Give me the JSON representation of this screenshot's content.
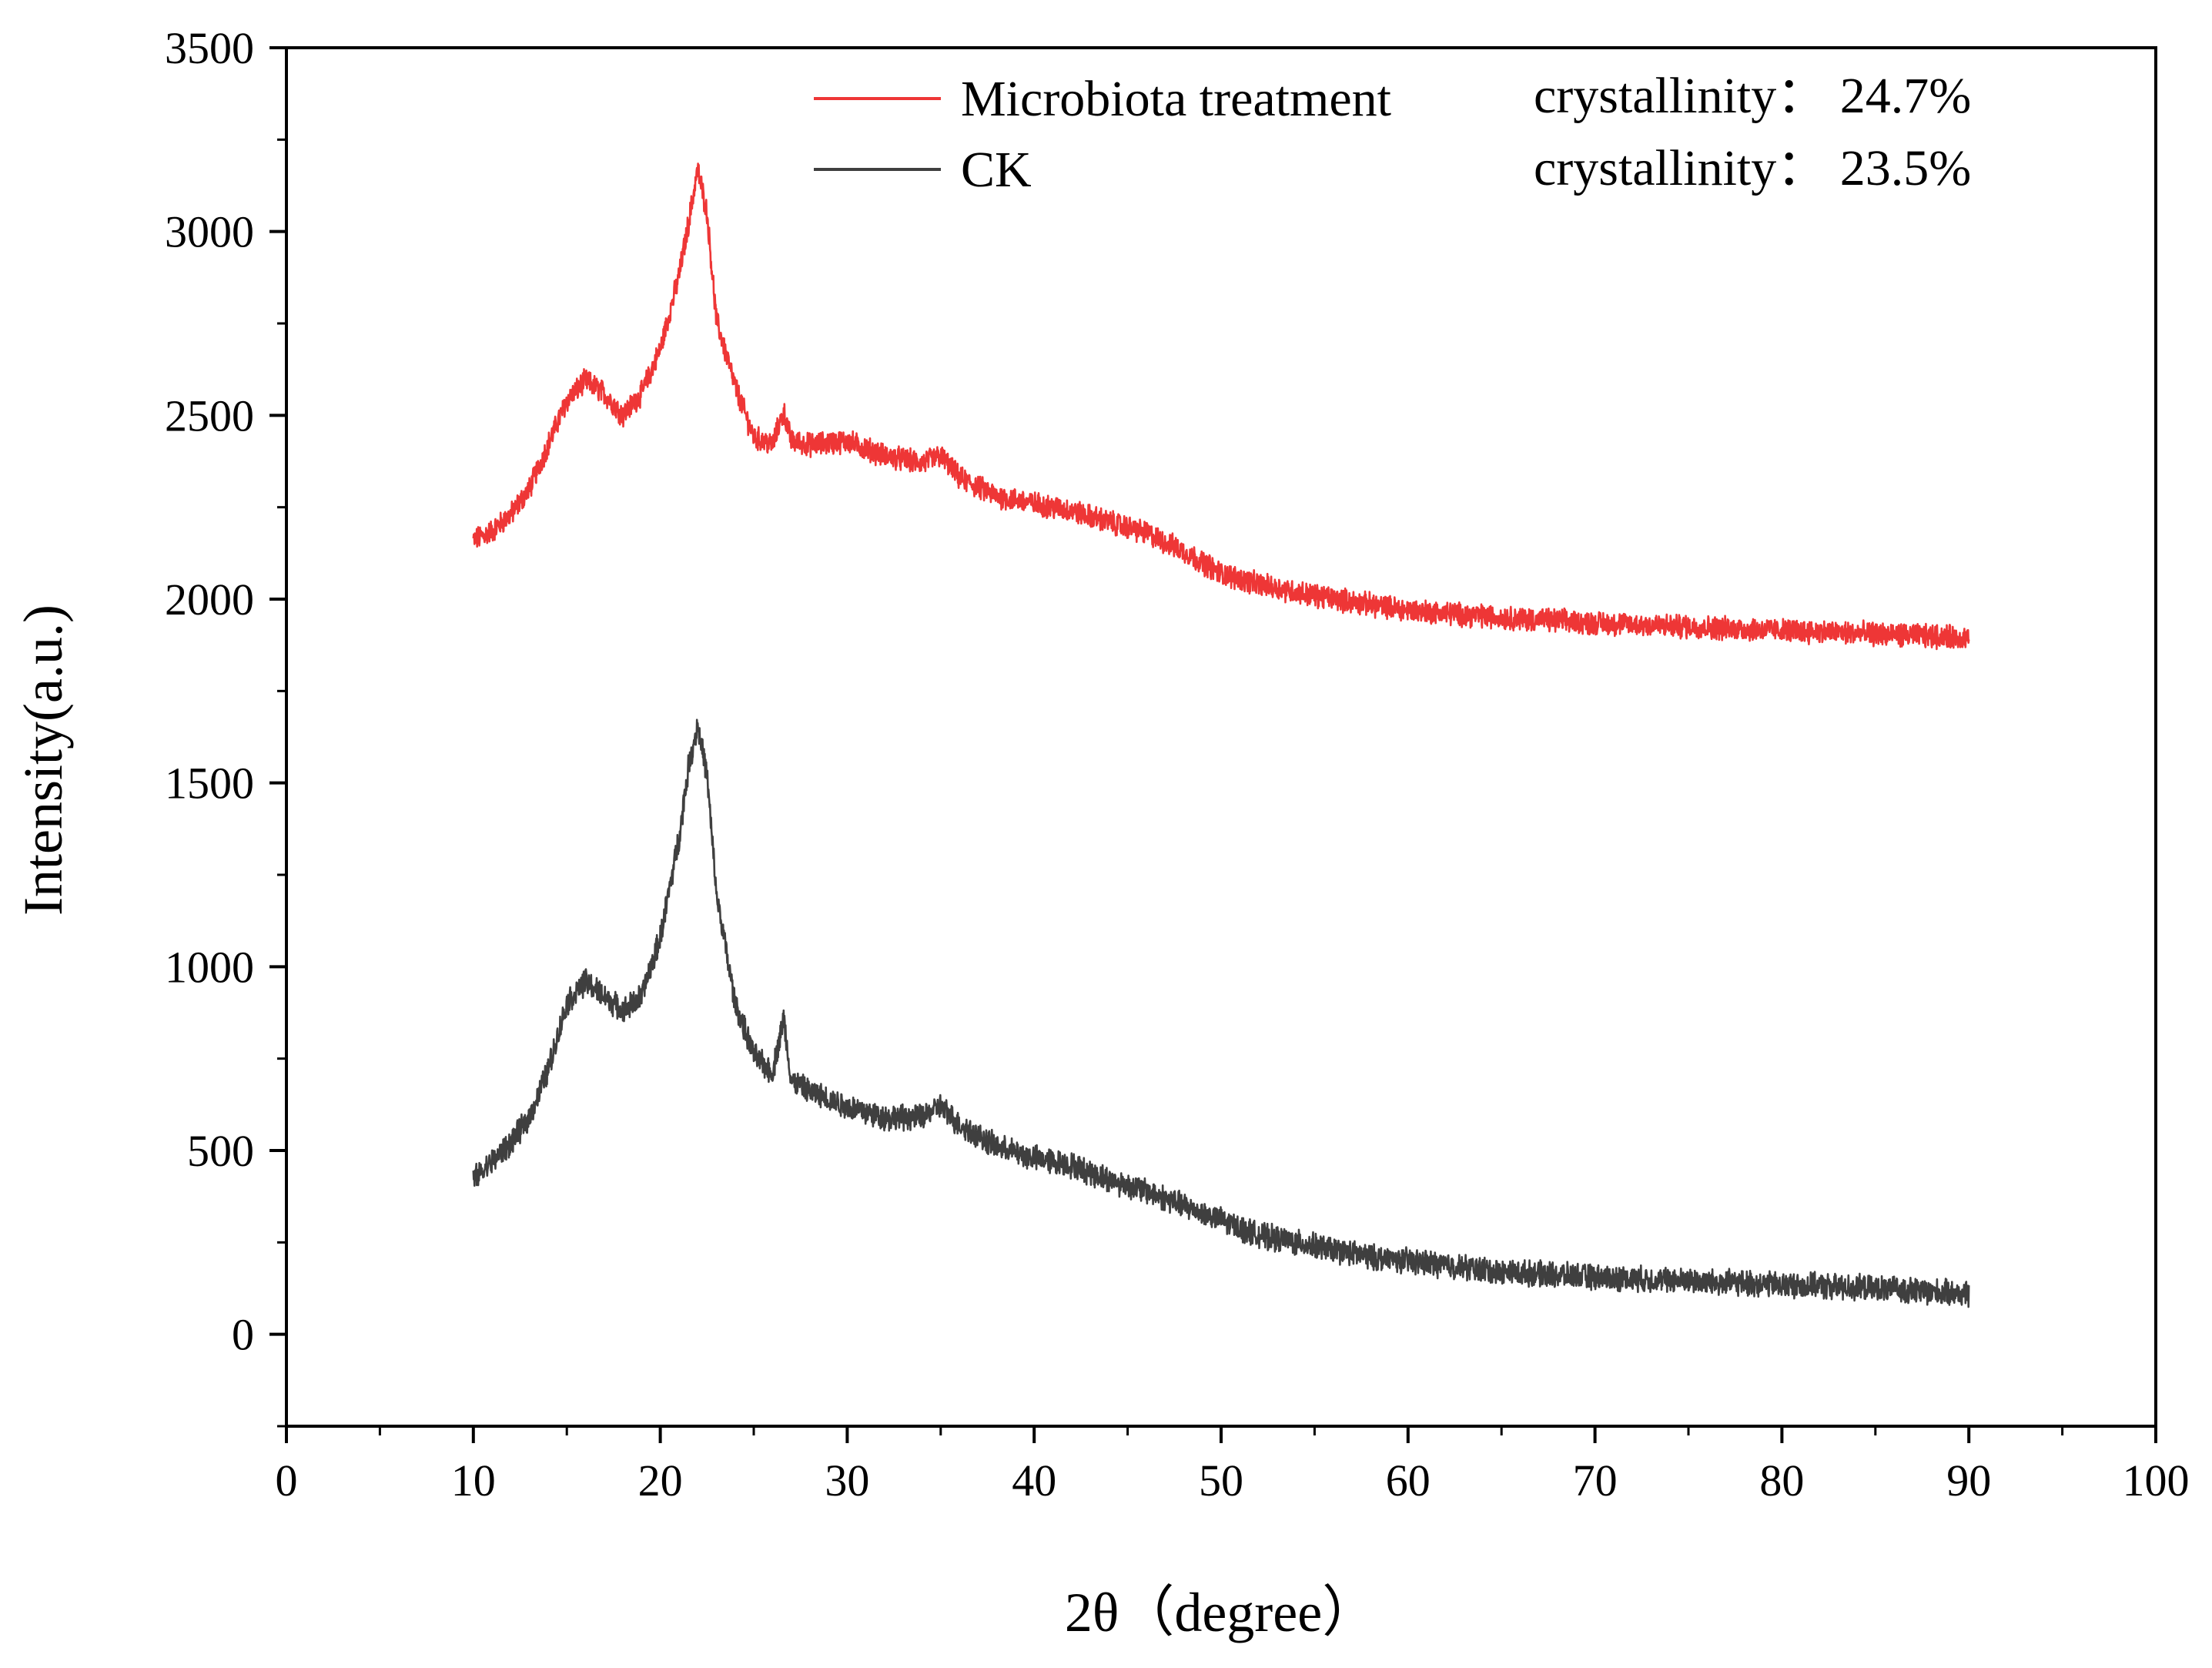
{
  "chart_data": {
    "type": "line",
    "title": "",
    "xlabel": "2θ（degree）",
    "ylabel": "Intensity(a.u.)",
    "xlim": [
      0,
      100
    ],
    "ylim": [
      -250,
      3500
    ],
    "xticks": [
      0,
      10,
      20,
      30,
      40,
      50,
      60,
      70,
      80,
      90,
      100
    ],
    "yticks": [
      0,
      500,
      1000,
      1500,
      2000,
      2500,
      3000,
      3500
    ],
    "grid": false,
    "legend_position": "top-center",
    "series": [
      {
        "name": "Microbiota treatment",
        "color": "#ee3636",
        "noise": 28,
        "x": [
          10,
          11,
          12,
          13,
          14,
          15,
          16,
          17,
          18,
          19,
          20,
          21,
          21.5,
          22,
          22.5,
          23,
          24,
          25,
          26,
          26.6,
          27,
          28,
          30,
          32,
          34,
          35,
          36,
          38,
          40,
          42,
          44,
          46,
          48,
          50,
          52,
          55,
          58,
          60,
          65,
          70,
          75,
          80,
          85,
          90
        ],
        "y": [
          2160,
          2185,
          2230,
          2300,
          2420,
          2540,
          2595,
          2560,
          2500,
          2560,
          2680,
          2880,
          3020,
          3170,
          3050,
          2760,
          2580,
          2440,
          2420,
          2510,
          2430,
          2420,
          2430,
          2390,
          2370,
          2390,
          2330,
          2280,
          2260,
          2240,
          2210,
          2180,
          2130,
          2070,
          2040,
          2010,
          1985,
          1970,
          1950,
          1935,
          1925,
          1915,
          1905,
          1895
        ]
      },
      {
        "name": "CK",
        "color": "#3f3f3f",
        "noise": 30,
        "x": [
          10,
          11,
          12,
          13,
          14,
          15,
          16,
          17,
          18,
          19,
          20,
          21,
          21.5,
          22,
          22.5,
          23,
          24,
          25,
          26,
          26.6,
          27,
          28,
          30,
          32,
          34,
          35,
          36,
          38,
          40,
          42,
          44,
          46,
          48,
          50,
          52,
          55,
          58,
          60,
          65,
          70,
          75,
          80,
          85,
          90
        ],
        "y": [
          420,
          470,
          520,
          590,
          720,
          900,
          960,
          920,
          880,
          920,
          1080,
          1350,
          1540,
          1660,
          1520,
          1200,
          900,
          760,
          710,
          860,
          690,
          660,
          620,
          590,
          590,
          620,
          570,
          510,
          480,
          460,
          420,
          390,
          350,
          310,
          270,
          240,
          210,
          200,
          170,
          155,
          145,
          135,
          125,
          110
        ]
      }
    ],
    "annotations": [
      {
        "label": "crystallinity：",
        "value": "24.7%"
      },
      {
        "label": "crystallinity：",
        "value": "23.5%"
      }
    ]
  }
}
